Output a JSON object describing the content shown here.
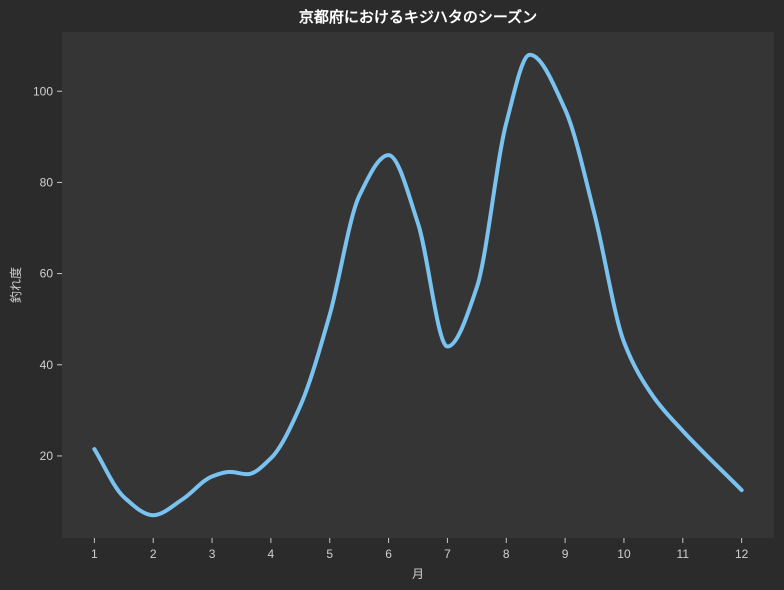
{
  "chart_data": {
    "type": "line",
    "title": "京都府におけるキジハタのシーズン",
    "xlabel": "月",
    "ylabel": "釣れ度",
    "x": [
      1,
      1.5,
      2,
      2.5,
      3,
      3.3,
      3.6,
      4,
      4.5,
      5,
      5.5,
      6,
      6.5,
      7,
      7.5,
      8,
      8.4,
      9,
      9.5,
      10,
      10.5,
      11,
      12
    ],
    "series": [
      {
        "values": [
          21.5,
          11,
          7,
          10.5,
          15.5,
          16.5,
          16,
          19.5,
          31,
          51,
          77,
          86,
          71,
          44,
          57,
          93,
          108,
          96,
          73,
          45,
          33,
          25.5,
          12.5
        ]
      }
    ],
    "xticks": [
      1,
      2,
      3,
      4,
      5,
      6,
      7,
      8,
      9,
      10,
      11,
      12
    ],
    "yticks": [
      20,
      40,
      60,
      80,
      100
    ],
    "xlim": [
      0.45,
      12.55
    ],
    "ylim": [
      2,
      113
    ],
    "grid": false,
    "colors": {
      "line": "#7ac2f0",
      "plot_background": "#353535",
      "figure_background": "#2b2b2b"
    }
  }
}
